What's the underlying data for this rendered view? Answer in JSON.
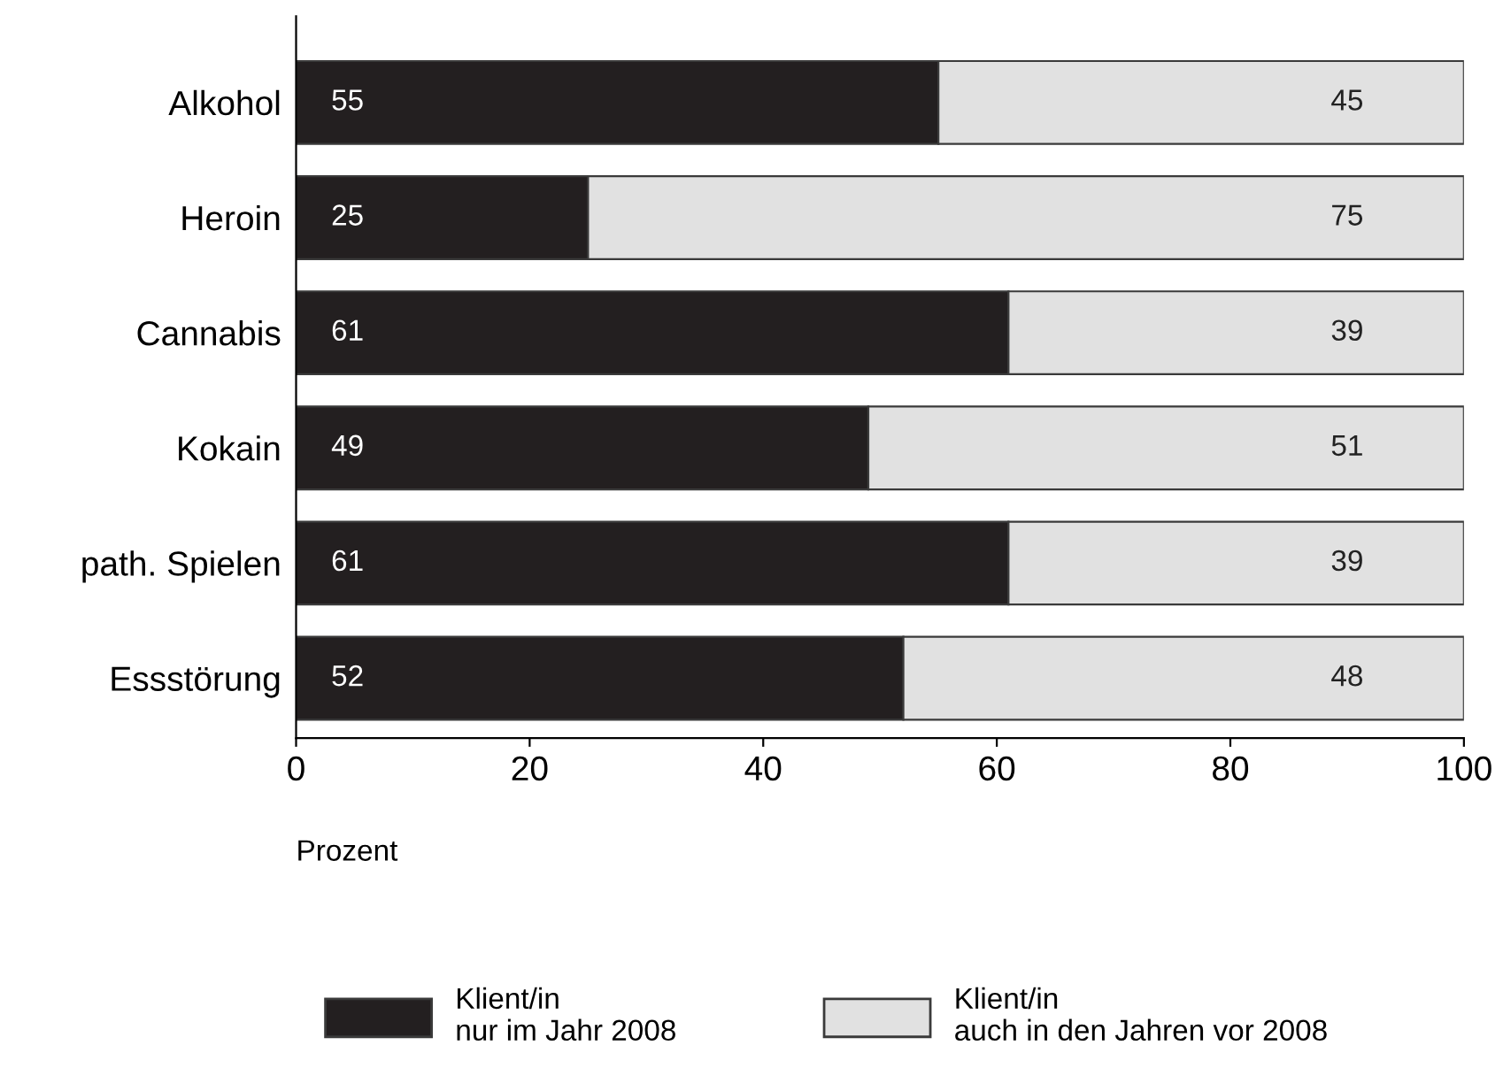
{
  "chart_data": {
    "type": "bar",
    "orientation": "horizontal",
    "stacked": true,
    "data_labels": true,
    "categories": [
      "Alkohol",
      "Heroin",
      "Cannabis",
      "Kokain",
      "path. Spielen",
      "Essstörung"
    ],
    "series": [
      {
        "name": "Klient/in\nnur im Jahr 2008",
        "color": "#231f20",
        "values": [
          55,
          25,
          61,
          49,
          61,
          52
        ]
      },
      {
        "name": "Klient/in\nauch in den Jahren vor 2008",
        "color": "#e1e1e1",
        "values": [
          45,
          75,
          39,
          51,
          39,
          48
        ]
      }
    ],
    "xlim": [
      0,
      100
    ],
    "xticks": [
      0,
      20,
      40,
      60,
      80,
      100
    ],
    "xlabel": "Prozent",
    "legend": "bottom",
    "grid": false
  }
}
